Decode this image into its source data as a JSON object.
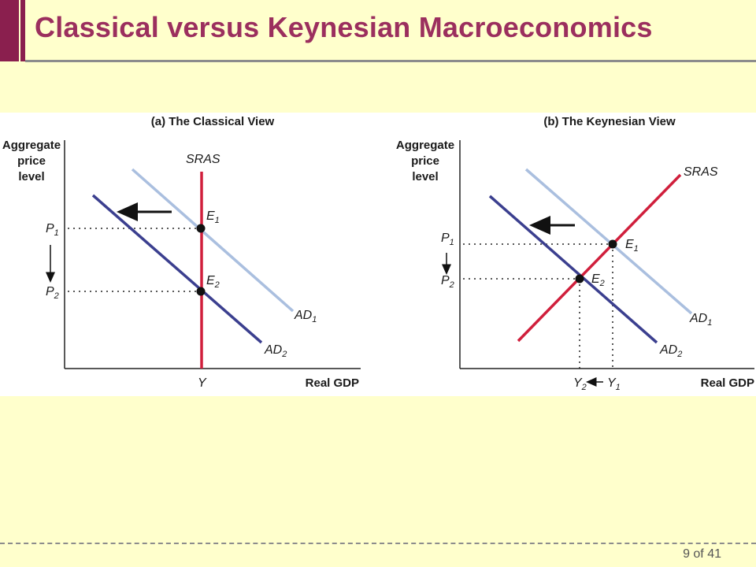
{
  "slide": {
    "title": "Classical versus Keynesian Macroeconomics",
    "page_number": "9 of 41"
  },
  "colors": {
    "title": "#9b2f5e",
    "accent_bar": "#8a1f4e",
    "background": "#ffffcc",
    "sras": "#d01f3c",
    "ad1": "#aabfdf",
    "ad2": "#3b3f8f"
  },
  "panels": [
    {
      "title": "(a) The Classical View",
      "y_axis_label": [
        "Aggregate",
        "price",
        "level"
      ],
      "x_axis_label": "Real GDP",
      "curves": {
        "sras": "SRAS",
        "ad1": "AD",
        "ad1_sub": "1",
        "ad2": "AD",
        "ad2_sub": "2"
      },
      "points": {
        "e1": "E",
        "e1_sub": "1",
        "e2": "E",
        "e2_sub": "2"
      },
      "ticks": {
        "p1": "P",
        "p1_sub": "1",
        "p2": "P",
        "p2_sub": "2",
        "y": "Y"
      }
    },
    {
      "title": "(b) The Keynesian View",
      "y_axis_label": [
        "Aggregate",
        "price",
        "level"
      ],
      "x_axis_label": "Real GDP",
      "curves": {
        "sras": "SRAS",
        "ad1": "AD",
        "ad1_sub": "1",
        "ad2": "AD",
        "ad2_sub": "2"
      },
      "points": {
        "e1": "E",
        "e1_sub": "1",
        "e2": "E",
        "e2_sub": "2"
      },
      "ticks": {
        "p1": "P",
        "p1_sub": "1",
        "p2": "P",
        "p2_sub": "2",
        "y1": "Y",
        "y1_sub": "1",
        "y2": "Y",
        "y2_sub": "2"
      }
    }
  ]
}
